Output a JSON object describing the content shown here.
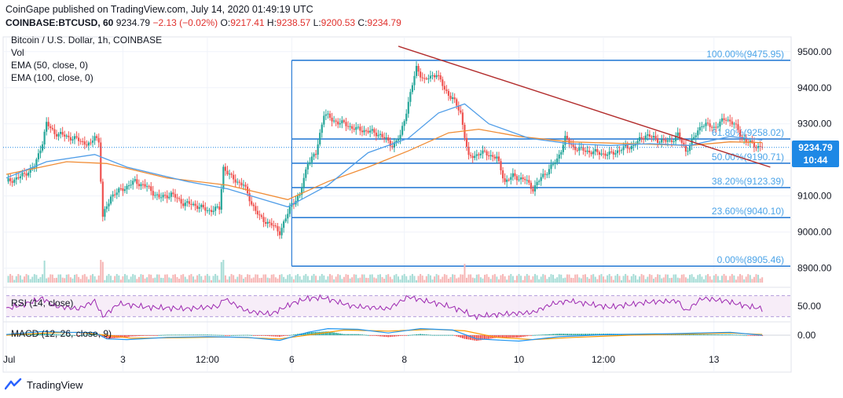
{
  "header": {
    "published": "CoinGape published on TradingView.com, July 14, 2020 01:49:19 UTC",
    "symbol": "COINBASE:BTCUSD, 60",
    "last": "9234.79",
    "change": "−2.13 (−0.02%)",
    "o_label": "O:",
    "o_value": "9217.41",
    "h_label": "H:",
    "h_value": "9238.57",
    "l_label": "L:",
    "l_value": "9200.53",
    "c_label": "C:",
    "c_value": "9234.79"
  },
  "legend": {
    "title": "Bitcoin / U.S. Dollar, 1h, COINBASE",
    "vol": "Vol",
    "ema50": "EMA (50, close, 0)",
    "ema100": "EMA (100, close, 0)",
    "rsi": "RSI (14, close)",
    "macd": "MACD (12, 26, close, 9)"
  },
  "price_badge": {
    "value": "9234.79",
    "timer": "10:44",
    "color": "#1e88e5"
  },
  "footer": {
    "brand": "TradingView"
  },
  "chart_data": [
    {
      "type": "candlestick",
      "pair": "BTCUSD",
      "interval": "1h",
      "exchange": "COINBASE",
      "ylim": [
        8860,
        9530
      ],
      "y_ticks": [
        "9500.00",
        "9400.00",
        "9300.00",
        "9200.00",
        "9100.00",
        "9000.00",
        "8900.00"
      ],
      "y_tick_values": [
        9500,
        9400,
        9300,
        9200,
        9100,
        9000,
        8900
      ],
      "x_ticks": [
        "Jul",
        "3",
        "12:00",
        "6",
        "8",
        "10",
        "12:00",
        "13"
      ],
      "x_tick_positions": [
        0,
        58,
        100,
        142,
        198,
        255,
        297,
        352
      ],
      "x_range": [
        0,
        390
      ],
      "last_price": 9234.79,
      "close_path": [
        [
          0,
          9140
        ],
        [
          6,
          9150
        ],
        [
          10,
          9165
        ],
        [
          14,
          9180
        ],
        [
          18,
          9250
        ],
        [
          20,
          9300
        ],
        [
          24,
          9275
        ],
        [
          30,
          9265
        ],
        [
          36,
          9255
        ],
        [
          42,
          9240
        ],
        [
          44,
          9270
        ],
        [
          46,
          9250
        ],
        [
          48,
          9040
        ],
        [
          52,
          9100
        ],
        [
          58,
          9120
        ],
        [
          64,
          9140
        ],
        [
          70,
          9125
        ],
        [
          76,
          9095
        ],
        [
          82,
          9105
        ],
        [
          88,
          9080
        ],
        [
          94,
          9075
        ],
        [
          100,
          9060
        ],
        [
          106,
          9065
        ],
        [
          108,
          9180
        ],
        [
          112,
          9150
        ],
        [
          118,
          9130
        ],
        [
          122,
          9080
        ],
        [
          126,
          9040
        ],
        [
          132,
          9020
        ],
        [
          136,
          9000
        ],
        [
          140,
          9050
        ],
        [
          142,
          9080
        ],
        [
          146,
          9100
        ],
        [
          150,
          9195
        ],
        [
          154,
          9215
        ],
        [
          158,
          9330
        ],
        [
          162,
          9310
        ],
        [
          168,
          9300
        ],
        [
          174,
          9285
        ],
        [
          180,
          9280
        ],
        [
          186,
          9270
        ],
        [
          192,
          9240
        ],
        [
          196,
          9265
        ],
        [
          200,
          9360
        ],
        [
          204,
          9455
        ],
        [
          208,
          9420
        ],
        [
          214,
          9440
        ],
        [
          218,
          9395
        ],
        [
          222,
          9370
        ],
        [
          226,
          9330
        ],
        [
          230,
          9205
        ],
        [
          236,
          9220
        ],
        [
          240,
          9215
        ],
        [
          244,
          9205
        ],
        [
          248,
          9140
        ],
        [
          252,
          9155
        ],
        [
          258,
          9145
        ],
        [
          262,
          9120
        ],
        [
          266,
          9150
        ],
        [
          270,
          9175
        ],
        [
          274,
          9200
        ],
        [
          278,
          9260
        ],
        [
          282,
          9235
        ],
        [
          288,
          9225
        ],
        [
          294,
          9220
        ],
        [
          300,
          9215
        ],
        [
          306,
          9230
        ],
        [
          312,
          9240
        ],
        [
          318,
          9270
        ],
        [
          324,
          9255
        ],
        [
          330,
          9250
        ],
        [
          334,
          9270
        ],
        [
          338,
          9225
        ],
        [
          342,
          9260
        ],
        [
          346,
          9300
        ],
        [
          352,
          9290
        ],
        [
          358,
          9315
        ],
        [
          362,
          9300
        ],
        [
          366,
          9260
        ],
        [
          372,
          9240
        ],
        [
          376,
          9234.79
        ]
      ],
      "ema50": [
        [
          0,
          9150
        ],
        [
          20,
          9195
        ],
        [
          44,
          9215
        ],
        [
          60,
          9180
        ],
        [
          90,
          9140
        ],
        [
          110,
          9120
        ],
        [
          140,
          9070
        ],
        [
          160,
          9130
        ],
        [
          180,
          9220
        ],
        [
          200,
          9260
        ],
        [
          215,
          9330
        ],
        [
          228,
          9355
        ],
        [
          240,
          9300
        ],
        [
          260,
          9260
        ],
        [
          280,
          9245
        ],
        [
          300,
          9240
        ],
        [
          320,
          9245
        ],
        [
          340,
          9240
        ],
        [
          360,
          9265
        ],
        [
          376,
          9255
        ]
      ],
      "ema100": [
        [
          0,
          9160
        ],
        [
          30,
          9195
        ],
        [
          50,
          9190
        ],
        [
          80,
          9150
        ],
        [
          110,
          9130
        ],
        [
          140,
          9090
        ],
        [
          160,
          9140
        ],
        [
          180,
          9180
        ],
        [
          200,
          9225
        ],
        [
          220,
          9275
        ],
        [
          235,
          9285
        ],
        [
          255,
          9265
        ],
        [
          280,
          9250
        ],
        [
          310,
          9245
        ],
        [
          340,
          9240
        ],
        [
          360,
          9250
        ],
        [
          376,
          9248
        ]
      ],
      "trendline": [
        [
          195,
          9515
        ],
        [
          380,
          9180
        ]
      ],
      "fibonacci": [
        {
          "label": "100.00%(9475.95)",
          "level": 9475.95
        },
        {
          "label": "61.80%(9258.02)",
          "level": 9258.02
        },
        {
          "label": "50.00%(9190.71)",
          "level": 9190.71
        },
        {
          "label": "38.20%(9123.39)",
          "level": 9123.39
        },
        {
          "label": "23.60%(9040.10)",
          "level": 9040.1
        },
        {
          "label": "0.00%(8905.46)",
          "level": 8905.46
        }
      ],
      "fib_x_start": 142,
      "colors": {
        "up": "#26a69a",
        "down": "#ef5350",
        "ema50": "#4f9de8",
        "ema100": "#f08c35",
        "trend": "#b22c2c",
        "fib": "#2e7fd6",
        "fib_label": "#4aa3e8"
      }
    },
    {
      "type": "line",
      "name": "RSI (14, close)",
      "ylim": [
        20,
        80
      ],
      "bands": [
        30,
        70
      ],
      "y_ticks": [
        "50.00"
      ],
      "y_tick_values": [
        50
      ],
      "values": [
        [
          0,
          45
        ],
        [
          10,
          55
        ],
        [
          18,
          65
        ],
        [
          24,
          50
        ],
        [
          36,
          45
        ],
        [
          44,
          60
        ],
        [
          48,
          30
        ],
        [
          56,
          55
        ],
        [
          70,
          48
        ],
        [
          90,
          45
        ],
        [
          106,
          50
        ],
        [
          108,
          65
        ],
        [
          120,
          40
        ],
        [
          132,
          35
        ],
        [
          142,
          55
        ],
        [
          150,
          65
        ],
        [
          158,
          66
        ],
        [
          172,
          50
        ],
        [
          190,
          45
        ],
        [
          200,
          68
        ],
        [
          206,
          62
        ],
        [
          218,
          52
        ],
        [
          228,
          40
        ],
        [
          232,
          30
        ],
        [
          248,
          35
        ],
        [
          262,
          38
        ],
        [
          272,
          55
        ],
        [
          280,
          60
        ],
        [
          300,
          48
        ],
        [
          320,
          58
        ],
        [
          334,
          60
        ],
        [
          338,
          40
        ],
        [
          346,
          65
        ],
        [
          358,
          60
        ],
        [
          366,
          52
        ],
        [
          376,
          45
        ]
      ],
      "color": "#9c27b0"
    },
    {
      "type": "line",
      "name": "MACD (12, 26, close, 9)",
      "ylim": [
        -80,
        80
      ],
      "y_ticks": [
        "0.00"
      ],
      "y_tick_values": [
        0
      ],
      "macd": [
        [
          0,
          5
        ],
        [
          18,
          25
        ],
        [
          30,
          20
        ],
        [
          44,
          18
        ],
        [
          50,
          -25
        ],
        [
          60,
          -30
        ],
        [
          80,
          -15
        ],
        [
          100,
          -10
        ],
        [
          120,
          -15
        ],
        [
          136,
          -35
        ],
        [
          150,
          20
        ],
        [
          160,
          45
        ],
        [
          175,
          40
        ],
        [
          190,
          15
        ],
        [
          206,
          45
        ],
        [
          222,
          35
        ],
        [
          234,
          -25
        ],
        [
          255,
          -40
        ],
        [
          275,
          -10
        ],
        [
          300,
          5
        ],
        [
          330,
          10
        ],
        [
          345,
          15
        ],
        [
          360,
          20
        ],
        [
          376,
          0
        ]
      ],
      "signal": [
        [
          0,
          0
        ],
        [
          20,
          15
        ],
        [
          36,
          20
        ],
        [
          50,
          0
        ],
        [
          62,
          -20
        ],
        [
          80,
          -18
        ],
        [
          110,
          -12
        ],
        [
          136,
          -25
        ],
        [
          155,
          10
        ],
        [
          168,
          35
        ],
        [
          190,
          28
        ],
        [
          212,
          40
        ],
        [
          228,
          30
        ],
        [
          244,
          -15
        ],
        [
          262,
          -30
        ],
        [
          282,
          -15
        ],
        [
          310,
          0
        ],
        [
          340,
          8
        ],
        [
          360,
          15
        ],
        [
          376,
          5
        ]
      ],
      "colors": {
        "macd": "#2196f3",
        "signal": "#ff9800",
        "hist_up": "#26a69a",
        "hist_down": "#ef5350"
      }
    }
  ]
}
